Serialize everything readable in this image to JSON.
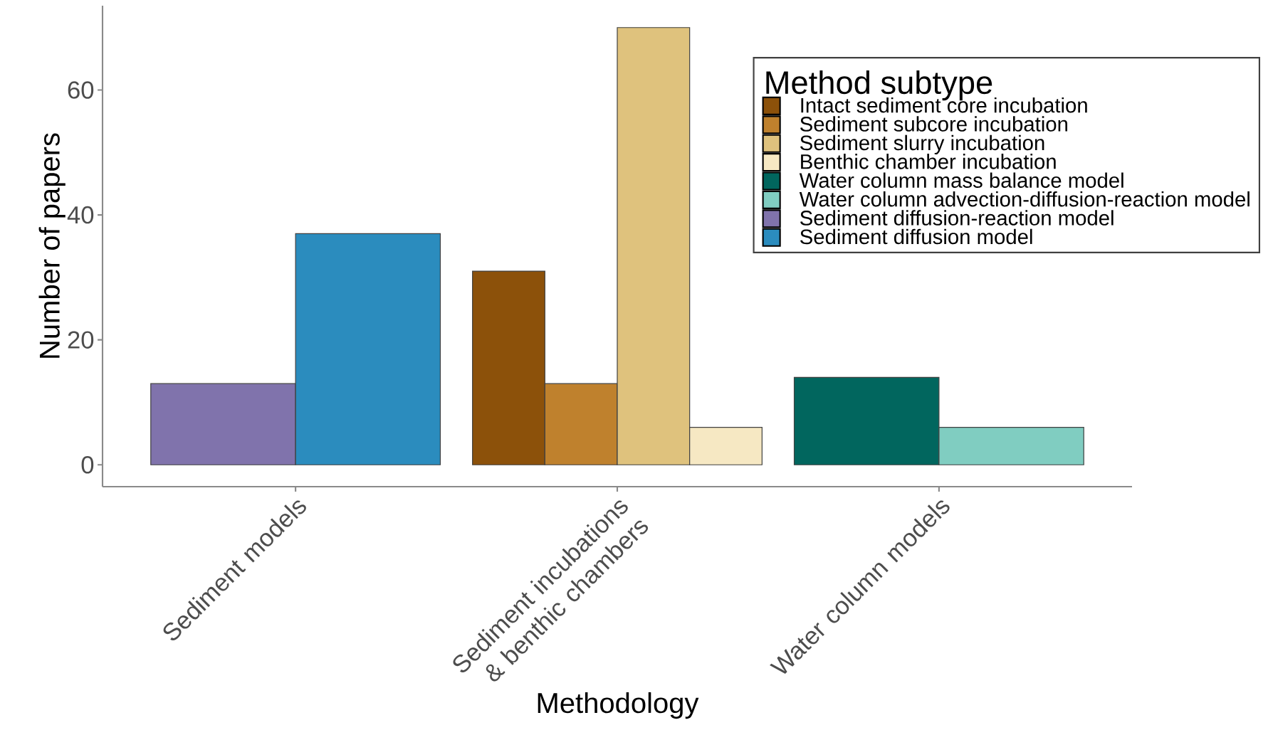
{
  "chart_data": {
    "type": "bar",
    "xlabel": "Methodology",
    "ylabel": "Number of papers",
    "legend_title": "Method subtype",
    "legend": "top right",
    "categories": [
      "Sediment models",
      "Sediment incubations & benthic chambers",
      "Water column models"
    ],
    "series": [
      {
        "name": "Intact sediment core incubation",
        "color": "#8c510a",
        "values": [
          null,
          31,
          null
        ]
      },
      {
        "name": "Sediment subcore incubation",
        "color": "#bf812d",
        "values": [
          null,
          13,
          null
        ]
      },
      {
        "name": "Sediment slurry incubation",
        "color": "#dfc27d",
        "values": [
          null,
          70,
          null
        ]
      },
      {
        "name": "Benthic chamber incubation",
        "color": "#f6e8c3",
        "values": [
          null,
          6,
          null
        ]
      },
      {
        "name": "Water column mass balance model",
        "color": "#01665e",
        "values": [
          null,
          null,
          14
        ]
      },
      {
        "name": "Water column advection-diffusion-reaction model",
        "color": "#80cdc1",
        "values": [
          null,
          null,
          6
        ]
      },
      {
        "name": "Sediment diffusion-reaction model",
        "color": "#8073ac",
        "values": [
          13,
          null,
          null
        ]
      },
      {
        "name": "Sediment diffusion model",
        "color": "#2b8cbe",
        "values": [
          37,
          null,
          null
        ]
      }
    ],
    "ylim": [
      -3.5,
      73.5
    ],
    "yticks": [
      0,
      20,
      40,
      60
    ]
  }
}
